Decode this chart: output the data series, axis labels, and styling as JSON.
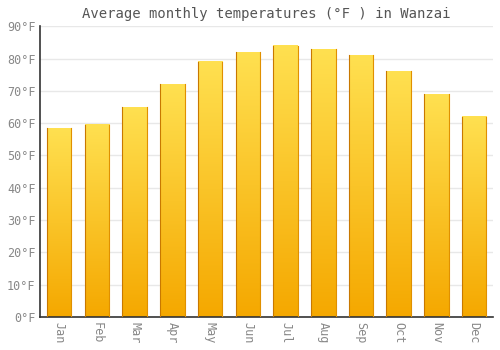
{
  "title": "Average monthly temperatures (°F ) in Wanzai",
  "months": [
    "Jan",
    "Feb",
    "Mar",
    "Apr",
    "May",
    "Jun",
    "Jul",
    "Aug",
    "Sep",
    "Oct",
    "Nov",
    "Dec"
  ],
  "values": [
    58.5,
    59.5,
    65.0,
    72.0,
    79.0,
    82.0,
    84.0,
    83.0,
    81.0,
    76.0,
    69.0,
    62.0
  ],
  "bar_color_bottom": "#F5A800",
  "bar_color_top": "#FFE060",
  "bar_color_left_edge": "#E89000",
  "bar_color_right_edge": "#FFC830",
  "ylim": [
    0,
    90
  ],
  "yticks": [
    0,
    10,
    20,
    30,
    40,
    50,
    60,
    70,
    80,
    90
  ],
  "ytick_labels": [
    "0°F",
    "10°F",
    "20°F",
    "30°F",
    "40°F",
    "50°F",
    "60°F",
    "70°F",
    "80°F",
    "90°F"
  ],
  "background_color": "#FFFFFF",
  "plot_bg_color": "#FFFFFF",
  "grid_color": "#E8E8E8",
  "spine_color": "#333333",
  "title_fontsize": 10,
  "tick_fontsize": 8.5,
  "font_family": "monospace",
  "bar_width": 0.65
}
